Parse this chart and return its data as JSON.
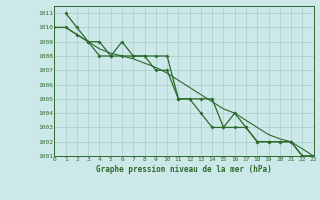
{
  "title": "Graphe pression niveau de la mer (hPa)",
  "bg_color": "#cce8e8",
  "grid_color": "#aacccc",
  "line_color": "#2d6a2d",
  "xlim": [
    0,
    23
  ],
  "ylim": [
    1001,
    1011.5
  ],
  "xticks": [
    0,
    1,
    2,
    3,
    4,
    5,
    6,
    7,
    8,
    9,
    10,
    11,
    12,
    13,
    14,
    15,
    16,
    17,
    18,
    19,
    20,
    21,
    22,
    23
  ],
  "yticks": [
    1001,
    1002,
    1003,
    1004,
    1005,
    1006,
    1007,
    1008,
    1009,
    1010,
    1011
  ],
  "series": [
    {
      "x": [
        0,
        1,
        2,
        3,
        4,
        5,
        6,
        7,
        8,
        9,
        10,
        11,
        12,
        13,
        14,
        15,
        16,
        17,
        18,
        19,
        20,
        21,
        22,
        23
      ],
      "y": [
        1010,
        1010,
        1009.5,
        1009,
        1008,
        1008,
        1008,
        1008,
        1008,
        1008,
        1008,
        1005,
        1005,
        1005,
        1005,
        1003,
        1003,
        1003,
        1002,
        1002,
        1002,
        1002,
        1001,
        1001
      ],
      "marker": "D",
      "lw": 0.9,
      "ms": 2.0
    },
    {
      "x": [
        1,
        2,
        3,
        4,
        5,
        6,
        7,
        8,
        9,
        10,
        11,
        12,
        13,
        14,
        15,
        16,
        17,
        18,
        19,
        20,
        21,
        22,
        23
      ],
      "y": [
        1011,
        1010,
        1009,
        1009,
        1008,
        1009,
        1008,
        1008,
        1007,
        1007,
        1005,
        1005,
        1004,
        1003,
        1003,
        1004,
        1003,
        1002,
        1002,
        1002,
        1002,
        1001,
        1001
      ],
      "marker": "D",
      "lw": 0.9,
      "ms": 2.0
    },
    {
      "x": [
        0,
        1,
        2,
        3,
        4,
        5,
        6,
        7,
        8,
        9,
        10,
        11,
        12,
        13,
        14,
        15,
        16,
        17,
        18,
        19,
        20,
        21,
        22,
        23
      ],
      "y": [
        1010,
        1010,
        1009.5,
        1009,
        1008.5,
        1008.2,
        1008,
        1007.8,
        1007.5,
        1007.2,
        1006.8,
        1006.3,
        1005.8,
        1005.3,
        1004.8,
        1004.3,
        1004.0,
        1003.5,
        1003.0,
        1002.5,
        1002.2,
        1002.0,
        1001.5,
        1001.0
      ],
      "marker": null,
      "lw": 0.8,
      "ms": 0
    }
  ]
}
